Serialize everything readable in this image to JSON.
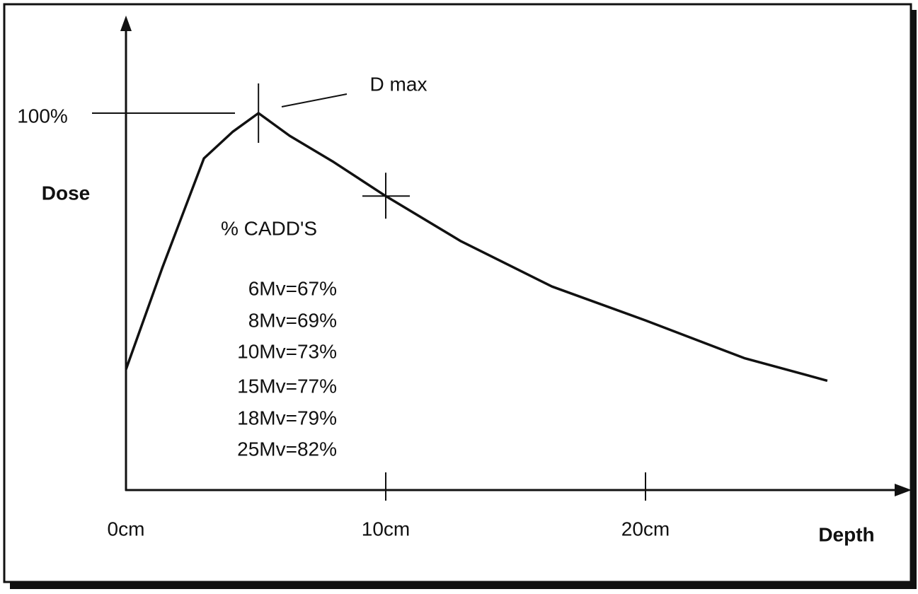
{
  "chart_data": {
    "type": "line",
    "color": "#111111",
    "x": [
      0,
      1.4,
      3,
      4.1,
      5.1,
      6.3,
      8,
      10,
      12.9,
      16.4,
      20,
      23.8,
      27
    ],
    "values": [
      32,
      59,
      88,
      95,
      100,
      94,
      87,
      78,
      66,
      54,
      45,
      35,
      29
    ],
    "xlim": [
      0,
      30
    ],
    "ylim": [
      0,
      125
    ],
    "xticks": [
      {
        "value": 0,
        "label": "0cm"
      },
      {
        "value": 10,
        "label": "10cm"
      },
      {
        "value": 20,
        "label": "20cm"
      }
    ],
    "yticks": [
      {
        "value": 100,
        "label": "100%"
      }
    ],
    "x_label": "Depth",
    "y_label": "Dose",
    "markers": [
      4,
      7
    ],
    "annotations": [
      "D max",
      "% CADD'S",
      "6Mv=67%",
      "8Mv=69%",
      "10Mv=73%",
      "15Mv=77%",
      "18Mv=79%",
      "25Mv=82%"
    ]
  }
}
